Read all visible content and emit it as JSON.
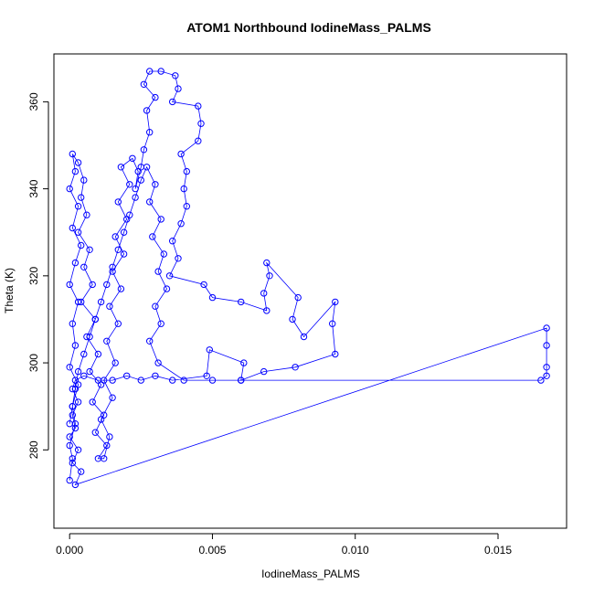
{
  "chart_data": {
    "type": "scatter",
    "title": "ATOM1 Northbound IodineMass_PALMS",
    "xlabel": "IodineMass_PALMS",
    "ylabel": "Theta (K)",
    "xlim": [
      -0.00055,
      0.0174
    ],
    "ylim": [
      262,
      371
    ],
    "x_ticks": [
      {
        "value": 0.0,
        "label": "0.000"
      },
      {
        "value": 0.005,
        "label": "0.005"
      },
      {
        "value": 0.01,
        "label": "0.010"
      },
      {
        "value": 0.015,
        "label": "0.015"
      }
    ],
    "y_ticks": [
      {
        "value": 280,
        "label": "280"
      },
      {
        "value": 300,
        "label": "300"
      },
      {
        "value": 320,
        "label": "320"
      },
      {
        "value": 340,
        "label": "340"
      },
      {
        "value": 360,
        "label": "360"
      }
    ],
    "marker": "open-circle",
    "connected": true,
    "grid": false,
    "color": "#0000ff",
    "series": [
      {
        "values": [
          [
            0.0,
            273
          ],
          [
            0.0001,
            278
          ],
          [
            0.0,
            281
          ],
          [
            0.0002,
            286
          ],
          [
            0.0001,
            290
          ],
          [
            0.0003,
            295
          ],
          [
            0.0,
            299
          ],
          [
            0.0002,
            304
          ],
          [
            0.0001,
            309
          ],
          [
            0.0003,
            314
          ],
          [
            0.0,
            318
          ],
          [
            0.0002,
            323
          ],
          [
            0.0004,
            327
          ],
          [
            0.0001,
            331
          ],
          [
            0.0003,
            336
          ],
          [
            0.0,
            340
          ],
          [
            0.0002,
            344
          ],
          [
            0.0001,
            348
          ],
          [
            0.0003,
            346
          ],
          [
            0.0005,
            342
          ],
          [
            0.0004,
            338
          ],
          [
            0.0006,
            334
          ],
          [
            0.0003,
            330
          ],
          [
            0.0007,
            326
          ],
          [
            0.0005,
            322
          ],
          [
            0.0008,
            318
          ],
          [
            0.0004,
            314
          ],
          [
            0.0009,
            310
          ],
          [
            0.0006,
            306
          ],
          [
            0.001,
            302
          ],
          [
            0.0007,
            298
          ],
          [
            0.0011,
            295
          ],
          [
            0.0008,
            291
          ],
          [
            0.0012,
            288
          ],
          [
            0.0009,
            284
          ],
          [
            0.0013,
            281
          ],
          [
            0.001,
            278
          ],
          [
            0.0012,
            278
          ],
          [
            0.0014,
            283
          ],
          [
            0.0011,
            287
          ],
          [
            0.0015,
            292
          ],
          [
            0.0012,
            296
          ],
          [
            0.0016,
            300
          ],
          [
            0.0013,
            305
          ],
          [
            0.0017,
            309
          ],
          [
            0.0014,
            313
          ],
          [
            0.0018,
            317
          ],
          [
            0.0015,
            321
          ],
          [
            0.0019,
            325
          ],
          [
            0.0016,
            329
          ],
          [
            0.002,
            333
          ],
          [
            0.0017,
            337
          ],
          [
            0.0021,
            341
          ],
          [
            0.0018,
            345
          ],
          [
            0.0022,
            347
          ],
          [
            0.0024,
            344
          ],
          [
            0.0023,
            340
          ],
          [
            0.0025,
            345
          ],
          [
            0.0026,
            349
          ],
          [
            0.0028,
            353
          ],
          [
            0.0027,
            358
          ],
          [
            0.003,
            361
          ],
          [
            0.0026,
            364
          ],
          [
            0.0028,
            367
          ],
          [
            0.0032,
            367
          ],
          [
            0.0037,
            366
          ],
          [
            0.0038,
            363
          ],
          [
            0.0036,
            360
          ],
          [
            0.0045,
            359
          ],
          [
            0.0046,
            355
          ],
          [
            0.0045,
            351
          ],
          [
            0.0039,
            348
          ],
          [
            0.0041,
            344
          ],
          [
            0.004,
            340
          ],
          [
            0.0041,
            336
          ],
          [
            0.0039,
            332
          ],
          [
            0.0036,
            328
          ],
          [
            0.0038,
            324
          ],
          [
            0.0035,
            320
          ],
          [
            0.0047,
            318
          ],
          [
            0.005,
            315
          ],
          [
            0.006,
            314
          ],
          [
            0.0069,
            312
          ],
          [
            0.0068,
            316
          ],
          [
            0.007,
            320
          ],
          [
            0.0069,
            323
          ],
          [
            0.008,
            315
          ],
          [
            0.0078,
            310
          ],
          [
            0.0082,
            306
          ],
          [
            0.0093,
            314
          ],
          [
            0.0092,
            309
          ],
          [
            0.0093,
            302
          ],
          [
            0.0079,
            299
          ],
          [
            0.0068,
            298
          ],
          [
            0.006,
            296
          ],
          [
            0.0061,
            300
          ],
          [
            0.0049,
            303
          ],
          [
            0.0048,
            297
          ],
          [
            0.0036,
            296
          ],
          [
            0.003,
            297
          ],
          [
            0.0025,
            296
          ],
          [
            0.002,
            297
          ],
          [
            0.0015,
            296
          ],
          [
            0.001,
            296
          ],
          [
            0.0005,
            297
          ],
          [
            0.0002,
            296
          ],
          [
            0.0001,
            294
          ],
          [
            0.0003,
            291
          ],
          [
            0.0001,
            288
          ],
          [
            0.0002,
            285
          ],
          [
            0.0,
            283
          ],
          [
            0.0003,
            280
          ],
          [
            0.0001,
            277
          ],
          [
            0.0004,
            275
          ],
          [
            0.0002,
            272
          ],
          [
            0.0167,
            308
          ],
          [
            0.0167,
            304
          ],
          [
            0.0167,
            299
          ],
          [
            0.0167,
            297
          ],
          [
            0.0165,
            296
          ],
          [
            0.006,
            296
          ],
          [
            0.005,
            296
          ],
          [
            0.004,
            296
          ],
          [
            0.0031,
            300
          ],
          [
            0.0028,
            305
          ],
          [
            0.0032,
            309
          ],
          [
            0.003,
            313
          ],
          [
            0.0034,
            317
          ],
          [
            0.0031,
            321
          ],
          [
            0.0033,
            325
          ],
          [
            0.0029,
            329
          ],
          [
            0.0032,
            333
          ],
          [
            0.0028,
            337
          ],
          [
            0.003,
            341
          ],
          [
            0.0027,
            345
          ],
          [
            0.0025,
            342
          ],
          [
            0.0023,
            338
          ],
          [
            0.0021,
            334
          ],
          [
            0.0019,
            330
          ],
          [
            0.0017,
            326
          ],
          [
            0.0015,
            322
          ],
          [
            0.0013,
            318
          ],
          [
            0.0011,
            314
          ],
          [
            0.0009,
            310
          ],
          [
            0.0007,
            306
          ],
          [
            0.0005,
            302
          ],
          [
            0.0003,
            298
          ],
          [
            0.0002,
            294
          ],
          [
            0.0001,
            290
          ],
          [
            0.0,
            286
          ]
        ]
      }
    ]
  }
}
